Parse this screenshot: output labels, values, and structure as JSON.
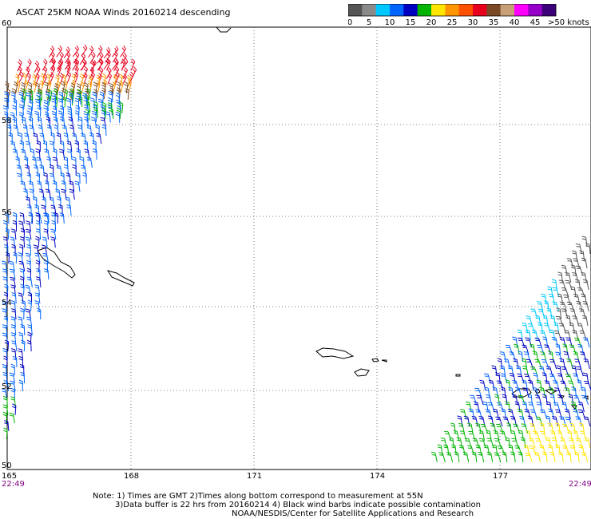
{
  "title": "ASCAT 25KM NOAA Winds 20160214 descending",
  "legend": {
    "ticks": [
      "0",
      "5",
      "10",
      "15",
      "20",
      "25",
      "30",
      "35",
      "40",
      "45"
    ],
    "last_label": ">50 knots",
    "colors": [
      "#555555",
      "#8a8a8a",
      "#00c8ff",
      "#0064ff",
      "#0000c0",
      "#00b400",
      "#ffe600",
      "#ff9600",
      "#ff5000",
      "#e6001e",
      "#7a4a26",
      "#c8a078",
      "#ff00ff",
      "#9600c8",
      "#3c0078"
    ]
  },
  "axes": {
    "lat_labels": [
      "60",
      "58",
      "56",
      "54",
      "52",
      "50"
    ],
    "lon_labels": [
      "165",
      "168",
      "171",
      "174",
      "177"
    ],
    "time_left": "22:49",
    "time_right": "22:49"
  },
  "notes": {
    "line1": "Note: 1) Times are GMT 2)Times along bottom correspond to measurement at 55N",
    "line2": "3)Data buffer is 22 hrs from 20160214 4) Black wind barbs indicate possible contamination",
    "line3": "NOAA/NESDIS/Center for Satellite Applications and Research"
  }
}
